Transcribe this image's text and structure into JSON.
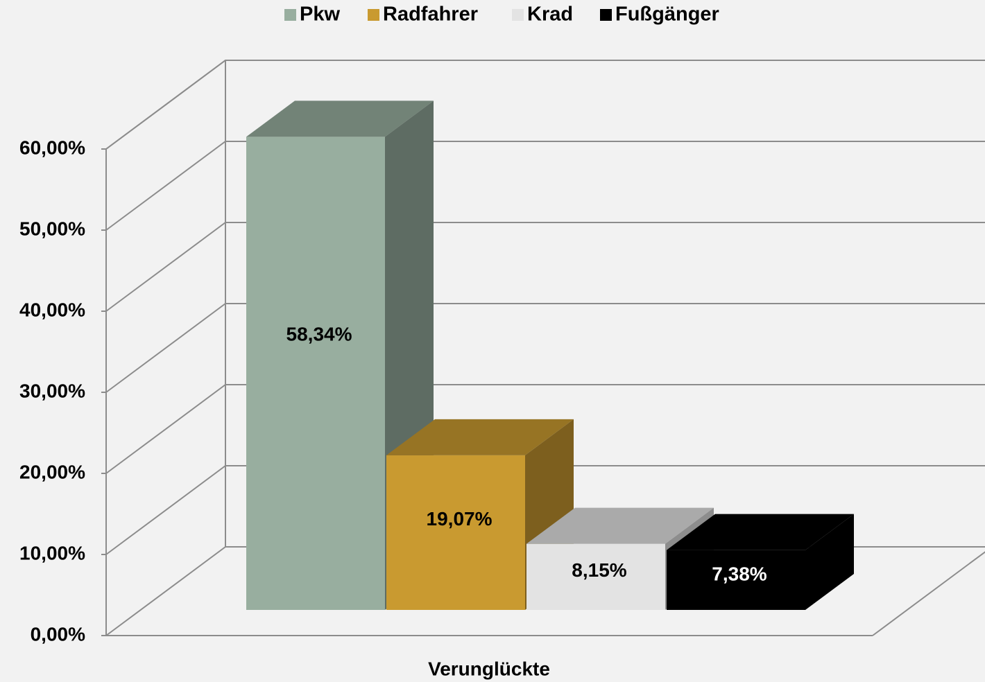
{
  "chart_data": {
    "type": "bar3d",
    "categories": [
      "Verunglückte"
    ],
    "series": [
      {
        "name": "Pkw",
        "color": "#98ae9f",
        "values": [
          58.34
        ],
        "value_labels": [
          "58,34%"
        ]
      },
      {
        "name": "Radfahrer",
        "color": "#c99a30",
        "values": [
          19.07
        ],
        "value_labels": [
          "19,07%"
        ]
      },
      {
        "name": "Krad",
        "color": "#e3e3e3",
        "values": [
          8.15
        ],
        "value_labels": [
          "8,15%"
        ]
      },
      {
        "name": "Fußgänger",
        "color": "#000000",
        "values": [
          7.38
        ],
        "value_labels": [
          "7,38%"
        ]
      }
    ],
    "ylim": [
      0,
      60
    ],
    "yticks": [
      {
        "value": 0,
        "label": "0,00%"
      },
      {
        "value": 10,
        "label": "10,00%"
      },
      {
        "value": 20,
        "label": "20,00%"
      },
      {
        "value": 30,
        "label": "30,00%"
      },
      {
        "value": 40,
        "label": "40,00%"
      },
      {
        "value": 50,
        "label": "50,00%"
      },
      {
        "value": 60,
        "label": "60,00%"
      }
    ],
    "grid": true,
    "legend": "top"
  }
}
